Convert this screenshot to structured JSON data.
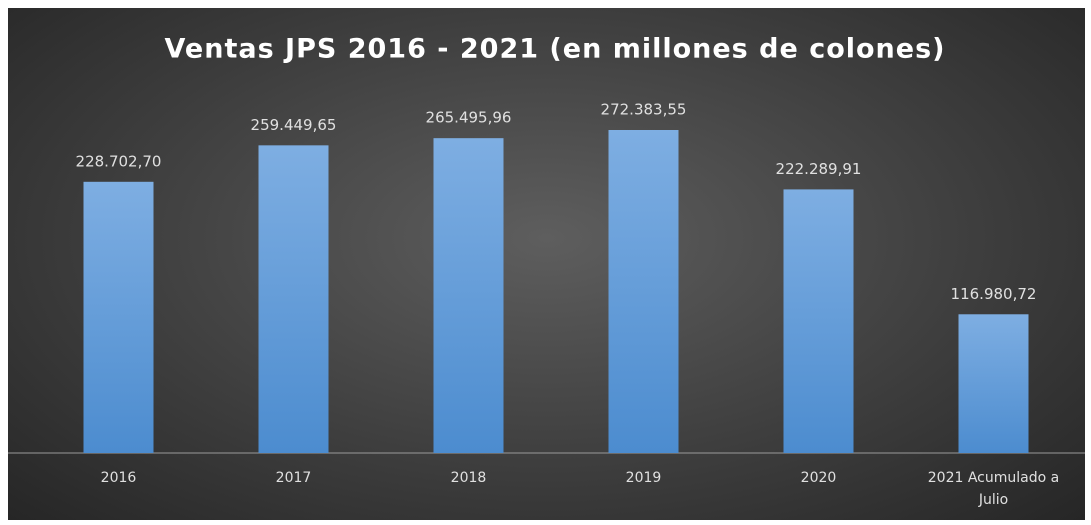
{
  "chart_data": {
    "type": "bar",
    "title": "Ventas JPS 2016 - 2021 (en millones de colones)",
    "categories": [
      "2016",
      "2017",
      "2018",
      "2019",
      "2020",
      "2021 Acumulado a Julio"
    ],
    "values": [
      228702.7,
      259449.65,
      265495.96,
      272383.55,
      222289.91,
      116980.72
    ],
    "value_labels": [
      "228.702,70",
      "259.449,65",
      "265.495,96",
      "272.383,55",
      "222.289,91",
      "116.980,72"
    ],
    "color": "#5b9bd5"
  }
}
